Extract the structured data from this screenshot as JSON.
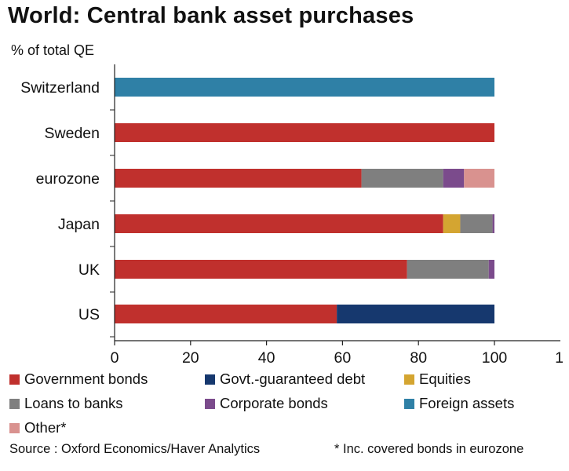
{
  "title": "World: Central bank asset purchases",
  "subtitle": "% of total QE",
  "source": "Source : Oxford Economics/Haver Analytics",
  "note": "* Inc. covered bonds in eurozone",
  "colors": {
    "Government bonds": "#c0302d",
    "Govt.-guaranteed debt": "#16386e",
    "Equities": "#d4a531",
    "Loans to banks": "#7f7f7f",
    "Corporate bonds": "#7b4b8c",
    "Foreign assets": "#2f80a6",
    "Other*": "#d9928f"
  },
  "legend": [
    {
      "label": "Government bonds",
      "color": "#c0302d"
    },
    {
      "label": "Govt.-guaranteed debt",
      "color": "#16386e"
    },
    {
      "label": "Equities",
      "color": "#d4a531"
    },
    {
      "label": "Loans to banks",
      "color": "#7f7f7f"
    },
    {
      "label": "Corporate bonds",
      "color": "#7b4b8c"
    },
    {
      "label": "Foreign assets",
      "color": "#2f80a6"
    },
    {
      "label": "Other*",
      "color": "#d9928f"
    }
  ],
  "chart_data": {
    "type": "bar",
    "orientation": "horizontal",
    "stacked": true,
    "categories": [
      "Switzerland",
      "Sweden",
      "eurozone",
      "Japan",
      "UK",
      "US"
    ],
    "xlim": [
      0,
      100
    ],
    "xticks": [
      "0",
      "20",
      "40",
      "60",
      "80",
      "100",
      "1"
    ],
    "series": [
      {
        "name": "Government bonds",
        "values": [
          0,
          100,
          65,
          86.5,
          77,
          58.5
        ]
      },
      {
        "name": "Govt.-guaranteed debt",
        "values": [
          0,
          0,
          0,
          0,
          0,
          41.5
        ]
      },
      {
        "name": "Equities",
        "values": [
          0,
          0,
          0,
          4.5,
          0,
          0
        ]
      },
      {
        "name": "Loans to banks",
        "values": [
          0,
          0,
          21.5,
          8.5,
          21.5,
          0
        ]
      },
      {
        "name": "Corporate bonds",
        "values": [
          0,
          0,
          5.5,
          0.5,
          1.5,
          0
        ]
      },
      {
        "name": "Foreign assets",
        "values": [
          100,
          0,
          0,
          0,
          0,
          0
        ]
      },
      {
        "name": "Other*",
        "values": [
          0,
          0,
          8,
          0,
          0,
          0
        ]
      }
    ],
    "grid": false,
    "legend_position": "bottom"
  }
}
